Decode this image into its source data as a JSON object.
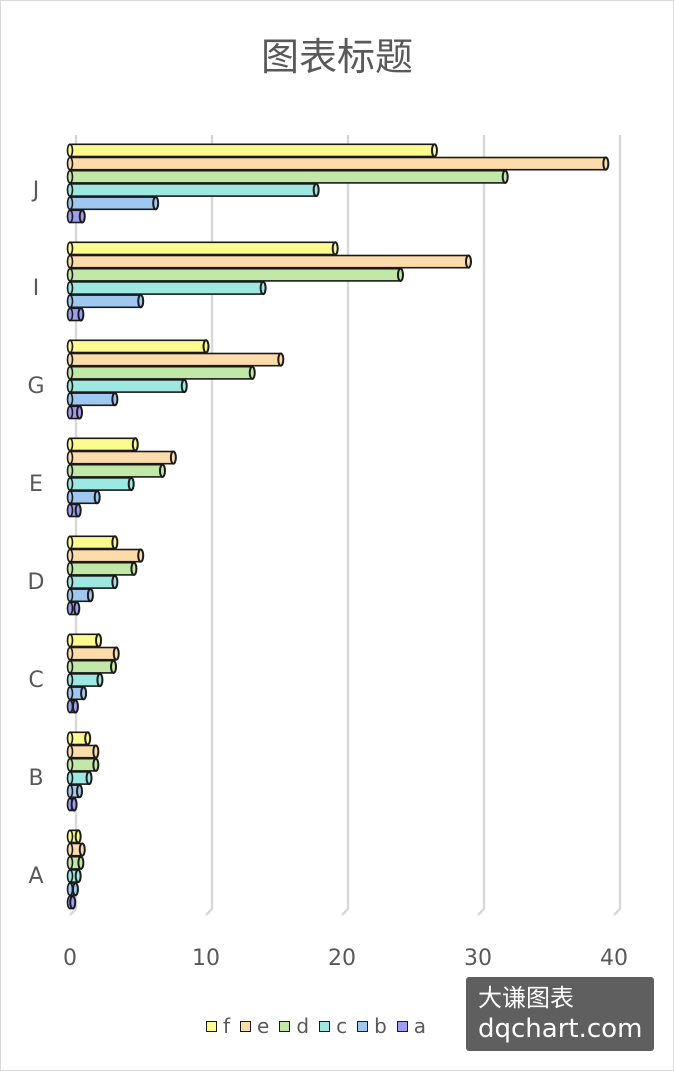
{
  "chart_data": {
    "type": "bar",
    "orientation": "horizontal",
    "title": "图表标题",
    "categories": [
      "A",
      "B",
      "C",
      "D",
      "E",
      "G",
      "I",
      "J"
    ],
    "series": [
      {
        "name": "a",
        "color": "#9e9ef0",
        "values": [
          0.2,
          0.3,
          0.4,
          0.5,
          0.6,
          0.7,
          0.8,
          0.9
        ]
      },
      {
        "name": "b",
        "color": "#9fc8f0",
        "values": [
          0.4,
          0.7,
          1.0,
          1.5,
          2.0,
          3.3,
          5.2,
          6.3
        ]
      },
      {
        "name": "c",
        "color": "#9de8e0",
        "values": [
          0.6,
          1.4,
          2.2,
          3.3,
          4.5,
          8.4,
          14.2,
          18.1
        ]
      },
      {
        "name": "d",
        "color": "#c2e8a8",
        "values": [
          0.8,
          1.9,
          3.2,
          4.7,
          6.8,
          13.4,
          24.3,
          32.0
        ]
      },
      {
        "name": "e",
        "color": "#fddcab",
        "values": [
          0.9,
          1.9,
          3.4,
          5.2,
          7.6,
          15.5,
          29.3,
          39.4
        ]
      },
      {
        "name": "f",
        "color": "#fbfb8e",
        "values": [
          0.6,
          1.3,
          2.1,
          3.3,
          4.8,
          10.0,
          19.5,
          26.8
        ]
      }
    ],
    "xlim": [
      0,
      40
    ],
    "x_ticks": [
      "0",
      "10",
      "20",
      "30",
      "40"
    ],
    "grid": true,
    "legend_position": "bottom",
    "legend_order": [
      "f",
      "e",
      "d",
      "c",
      "b",
      "a"
    ]
  },
  "watermark": {
    "line1": "大谦图表",
    "line2": "dqchart.com"
  }
}
